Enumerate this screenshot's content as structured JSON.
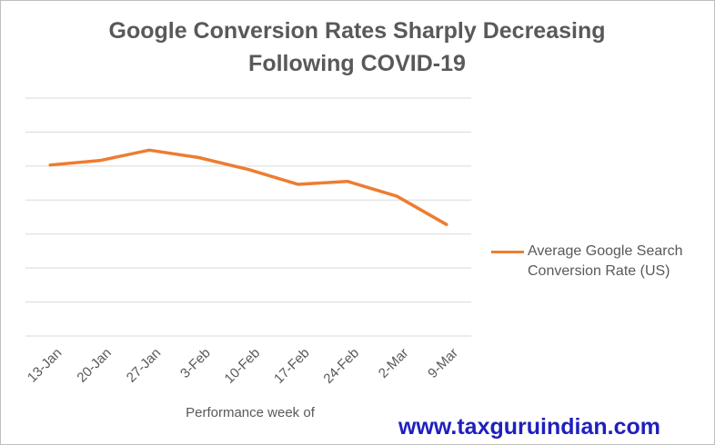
{
  "chart_data": {
    "type": "line",
    "title": "Google Conversion Rates Sharply Decreasing Following COVID-19",
    "xlabel": "Performance week of",
    "ylabel": "",
    "categories": [
      "13-Jan",
      "20-Jan",
      "27-Jan",
      "3-Feb",
      "10-Feb",
      "17-Feb",
      "24-Feb",
      "2-Mar",
      "9-Mar"
    ],
    "series": [
      {
        "name": "Average Google Search Conversion Rate (US)",
        "values": [
          5.75,
          5.9,
          6.25,
          6.0,
          5.6,
          5.1,
          5.2,
          4.7,
          3.75
        ],
        "color": "#ed7d31"
      }
    ],
    "ylim": [
      0,
      8
    ],
    "y_gridline_count": 7,
    "y_tick_labels_shown": false,
    "grid": true,
    "legend_position": "right"
  },
  "watermark": "www.taxguruindian.com"
}
